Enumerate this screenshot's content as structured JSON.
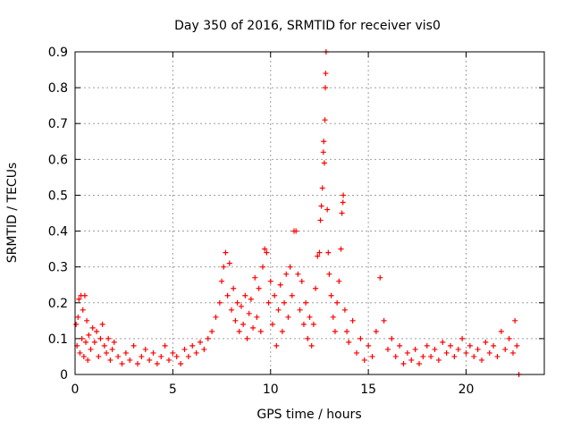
{
  "chart_data": {
    "type": "scatter",
    "title": "Day 350 of 2016, SRMTID for receiver vis0",
    "xlabel": "GPS time / hours",
    "ylabel": "SRMTID / TECUs",
    "xlim": [
      0,
      24
    ],
    "ylim": [
      0,
      0.9
    ],
    "x_ticks": [
      0,
      5,
      10,
      15,
      20
    ],
    "y_ticks": [
      0,
      0.1,
      0.2,
      0.3,
      0.4,
      0.5,
      0.6,
      0.7,
      0.8,
      0.9
    ],
    "x_tick_labels": [
      "0",
      "5",
      "10",
      "15",
      "20"
    ],
    "y_tick_labels": [
      "0",
      "0.1",
      "0.2",
      "0.3",
      "0.4",
      "0.5",
      "0.6",
      "0.7",
      "0.8",
      "0.9"
    ],
    "grid": true,
    "marker": "+",
    "color": "#ff0000",
    "series": [
      {
        "name": "vis0",
        "points": [
          [
            0.05,
            0.14
          ],
          [
            0.1,
            0.08
          ],
          [
            0.15,
            0.16
          ],
          [
            0.2,
            0.21
          ],
          [
            0.25,
            0.06
          ],
          [
            0.3,
            0.22
          ],
          [
            0.35,
            0.1
          ],
          [
            0.4,
            0.18
          ],
          [
            0.45,
            0.05
          ],
          [
            0.5,
            0.22
          ],
          [
            0.55,
            0.09
          ],
          [
            0.6,
            0.15
          ],
          [
            0.65,
            0.04
          ],
          [
            0.7,
            0.11
          ],
          [
            0.8,
            0.07
          ],
          [
            0.9,
            0.13
          ],
          [
            1.0,
            0.09
          ],
          [
            1.1,
            0.12
          ],
          [
            1.2,
            0.05
          ],
          [
            1.3,
            0.1
          ],
          [
            1.4,
            0.14
          ],
          [
            1.5,
            0.08
          ],
          [
            1.6,
            0.06
          ],
          [
            1.7,
            0.1
          ],
          [
            1.8,
            0.04
          ],
          [
            1.9,
            0.07
          ],
          [
            2.0,
            0.09
          ],
          [
            2.2,
            0.05
          ],
          [
            2.4,
            0.03
          ],
          [
            2.6,
            0.06
          ],
          [
            2.8,
            0.04
          ],
          [
            3.0,
            0.08
          ],
          [
            3.2,
            0.03
          ],
          [
            3.4,
            0.05
          ],
          [
            3.6,
            0.07
          ],
          [
            3.8,
            0.04
          ],
          [
            4.0,
            0.06
          ],
          [
            4.2,
            0.03
          ],
          [
            4.4,
            0.05
          ],
          [
            4.6,
            0.08
          ],
          [
            4.8,
            0.04
          ],
          [
            5.0,
            0.06
          ],
          [
            5.2,
            0.05
          ],
          [
            5.4,
            0.03
          ],
          [
            5.6,
            0.07
          ],
          [
            5.8,
            0.05
          ],
          [
            6.0,
            0.08
          ],
          [
            6.2,
            0.06
          ],
          [
            6.4,
            0.09
          ],
          [
            6.6,
            0.07
          ],
          [
            6.8,
            0.1
          ],
          [
            7.0,
            0.12
          ],
          [
            7.2,
            0.16
          ],
          [
            7.4,
            0.2
          ],
          [
            7.5,
            0.26
          ],
          [
            7.6,
            0.3
          ],
          [
            7.7,
            0.34
          ],
          [
            7.8,
            0.22
          ],
          [
            7.9,
            0.31
          ],
          [
            8.0,
            0.18
          ],
          [
            8.1,
            0.24
          ],
          [
            8.2,
            0.15
          ],
          [
            8.3,
            0.2
          ],
          [
            8.4,
            0.12
          ],
          [
            8.5,
            0.19
          ],
          [
            8.6,
            0.14
          ],
          [
            8.7,
            0.22
          ],
          [
            8.8,
            0.1
          ],
          [
            8.9,
            0.17
          ],
          [
            9.0,
            0.21
          ],
          [
            9.1,
            0.13
          ],
          [
            9.2,
            0.27
          ],
          [
            9.3,
            0.16
          ],
          [
            9.4,
            0.24
          ],
          [
            9.5,
            0.12
          ],
          [
            9.6,
            0.3
          ],
          [
            9.7,
            0.35
          ],
          [
            9.8,
            0.34
          ],
          [
            9.9,
            0.2
          ],
          [
            10.0,
            0.26
          ],
          [
            10.1,
            0.14
          ],
          [
            10.2,
            0.22
          ],
          [
            10.3,
            0.08
          ],
          [
            10.4,
            0.18
          ],
          [
            10.5,
            0.25
          ],
          [
            10.6,
            0.12
          ],
          [
            10.7,
            0.2
          ],
          [
            10.8,
            0.28
          ],
          [
            10.9,
            0.16
          ],
          [
            11.0,
            0.3
          ],
          [
            11.1,
            0.22
          ],
          [
            11.2,
            0.4
          ],
          [
            11.3,
            0.4
          ],
          [
            11.4,
            0.28
          ],
          [
            11.5,
            0.18
          ],
          [
            11.6,
            0.26
          ],
          [
            11.7,
            0.14
          ],
          [
            11.8,
            0.2
          ],
          [
            11.9,
            0.1
          ],
          [
            12.0,
            0.16
          ],
          [
            12.1,
            0.08
          ],
          [
            12.2,
            0.14
          ],
          [
            12.3,
            0.24
          ],
          [
            12.4,
            0.33
          ],
          [
            12.5,
            0.34
          ],
          [
            12.55,
            0.43
          ],
          [
            12.6,
            0.47
          ],
          [
            12.65,
            0.52
          ],
          [
            12.7,
            0.62
          ],
          [
            12.72,
            0.65
          ],
          [
            12.75,
            0.59
          ],
          [
            12.78,
            0.71
          ],
          [
            12.8,
            0.8
          ],
          [
            12.82,
            0.84
          ],
          [
            12.84,
            0.9
          ],
          [
            12.9,
            0.46
          ],
          [
            12.95,
            0.34
          ],
          [
            13.0,
            0.28
          ],
          [
            13.1,
            0.22
          ],
          [
            13.2,
            0.16
          ],
          [
            13.3,
            0.12
          ],
          [
            13.4,
            0.2
          ],
          [
            13.5,
            0.26
          ],
          [
            13.6,
            0.35
          ],
          [
            13.65,
            0.45
          ],
          [
            13.7,
            0.48
          ],
          [
            13.72,
            0.5
          ],
          [
            13.8,
            0.18
          ],
          [
            13.9,
            0.12
          ],
          [
            14.0,
            0.09
          ],
          [
            14.2,
            0.15
          ],
          [
            14.4,
            0.06
          ],
          [
            14.6,
            0.1
          ],
          [
            14.8,
            0.04
          ],
          [
            15.0,
            0.08
          ],
          [
            15.2,
            0.05
          ],
          [
            15.4,
            0.12
          ],
          [
            15.6,
            0.27
          ],
          [
            15.8,
            0.15
          ],
          [
            16.0,
            0.07
          ],
          [
            16.2,
            0.1
          ],
          [
            16.4,
            0.05
          ],
          [
            16.6,
            0.08
          ],
          [
            16.8,
            0.03
          ],
          [
            17.0,
            0.06
          ],
          [
            17.2,
            0.04
          ],
          [
            17.4,
            0.07
          ],
          [
            17.6,
            0.03
          ],
          [
            17.8,
            0.05
          ],
          [
            18.0,
            0.08
          ],
          [
            18.2,
            0.05
          ],
          [
            18.4,
            0.07
          ],
          [
            18.6,
            0.04
          ],
          [
            18.8,
            0.09
          ],
          [
            19.0,
            0.06
          ],
          [
            19.2,
            0.08
          ],
          [
            19.4,
            0.05
          ],
          [
            19.6,
            0.07
          ],
          [
            19.8,
            0.1
          ],
          [
            20.0,
            0.06
          ],
          [
            20.2,
            0.08
          ],
          [
            20.4,
            0.05
          ],
          [
            20.6,
            0.07
          ],
          [
            20.8,
            0.04
          ],
          [
            21.0,
            0.09
          ],
          [
            21.2,
            0.06
          ],
          [
            21.4,
            0.08
          ],
          [
            21.6,
            0.05
          ],
          [
            21.8,
            0.12
          ],
          [
            22.0,
            0.07
          ],
          [
            22.2,
            0.1
          ],
          [
            22.4,
            0.06
          ],
          [
            22.5,
            0.15
          ],
          [
            22.6,
            0.08
          ],
          [
            22.7,
            0.0
          ]
        ]
      }
    ]
  }
}
